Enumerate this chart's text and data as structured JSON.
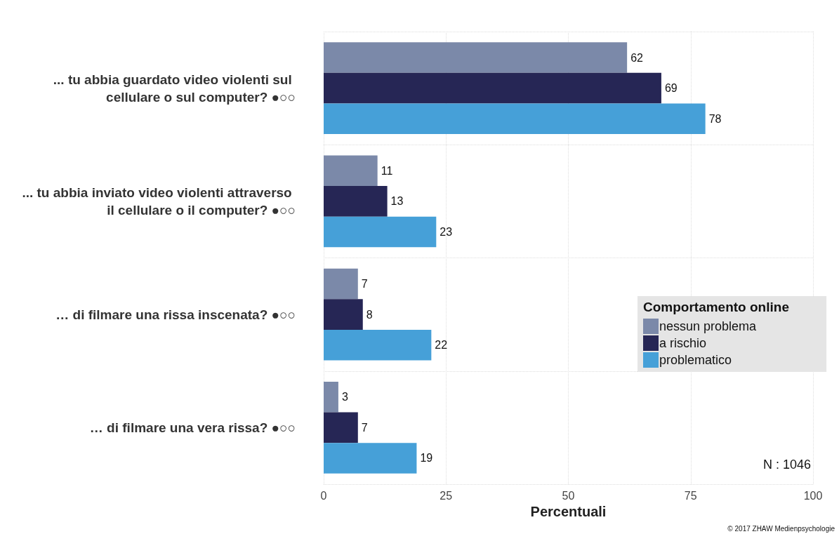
{
  "chart_data": {
    "type": "bar",
    "orientation": "horizontal",
    "categories": [
      "... tu abbia guardato video violenti sul cellulare o sul computer? ●○○",
      "... tu abbia inviato video violenti attraverso il cellulare o il computer? ●○○",
      "… di filmare una rissa inscenata? ●○○",
      "… di filmare una vera rissa? ●○○"
    ],
    "series": [
      {
        "name": "nessun problema",
        "color": "#7b89a9",
        "values": [
          62,
          11,
          7,
          3
        ]
      },
      {
        "name": "a rischio",
        "color": "#262655",
        "values": [
          69,
          13,
          8,
          7
        ]
      },
      {
        "name": "problematico",
        "color": "#46a0d8",
        "values": [
          78,
          23,
          22,
          19
        ]
      }
    ],
    "xlabel": "Percentuali",
    "legend_title": "Comportamento online",
    "legend": "right",
    "xlim": [
      0,
      100
    ],
    "xticks": [
      0,
      25,
      50,
      75,
      100
    ],
    "grid": true,
    "data_labels": true,
    "annotations": [
      "N : 1046",
      "© 2017 ZHAW Medienpsychologie"
    ]
  }
}
